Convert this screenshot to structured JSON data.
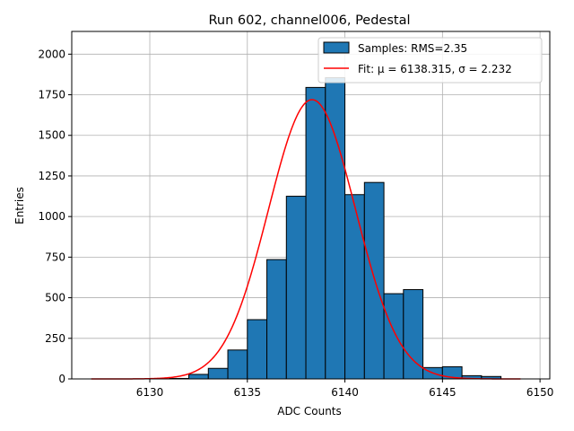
{
  "chart_data": {
    "type": "bar",
    "title": "Run 602, channel006, Pedestal",
    "xlabel": "ADC Counts",
    "ylabel": "Entries",
    "xlim": [
      6126.0,
      6150.5
    ],
    "ylim": [
      0,
      2140
    ],
    "grid": true,
    "legend_position": "top-right",
    "xticks": [
      6130,
      6135,
      6140,
      6145,
      6150
    ],
    "yticks": [
      0,
      250,
      500,
      750,
      1000,
      1250,
      1500,
      1750,
      2000
    ],
    "xtick_labels": [
      "6130",
      "6135",
      "6140",
      "6145",
      "6150"
    ],
    "ytick_labels": [
      "0",
      "250",
      "500",
      "750",
      "1000",
      "1250",
      "1500",
      "1750",
      "2000"
    ],
    "bin_width": 1,
    "bins": [
      {
        "x0": 6131,
        "value": 3
      },
      {
        "x0": 6132,
        "value": 28
      },
      {
        "x0": 6133,
        "value": 65
      },
      {
        "x0": 6134,
        "value": 178
      },
      {
        "x0": 6135,
        "value": 365
      },
      {
        "x0": 6136,
        "value": 735
      },
      {
        "x0": 6137,
        "value": 1125
      },
      {
        "x0": 6138,
        "value": 1795
      },
      {
        "x0": 6139,
        "value": 1855
      },
      {
        "x0": 6140,
        "value": 1135
      },
      {
        "x0": 6141,
        "value": 1210
      },
      {
        "x0": 6142,
        "value": 525
      },
      {
        "x0": 6143,
        "value": 550
      },
      {
        "x0": 6144,
        "value": 70
      },
      {
        "x0": 6145,
        "value": 75
      },
      {
        "x0": 6146,
        "value": 20
      },
      {
        "x0": 6147,
        "value": 15
      }
    ],
    "fit": {
      "mu": 6138.315,
      "sigma": 2.232,
      "amplitude": 1720,
      "x_range": [
        6127,
        6149
      ]
    },
    "legend": [
      {
        "label": "Samples: RMS=2.35",
        "kind": "patch"
      },
      {
        "label": "Fit: μ = 6138.315, σ = 2.232",
        "kind": "line"
      }
    ],
    "colors": {
      "bar_fill": "#1f77b4",
      "bar_edge": "#000000",
      "fit_line": "#ff0000",
      "grid": "#b0b0b0"
    }
  }
}
